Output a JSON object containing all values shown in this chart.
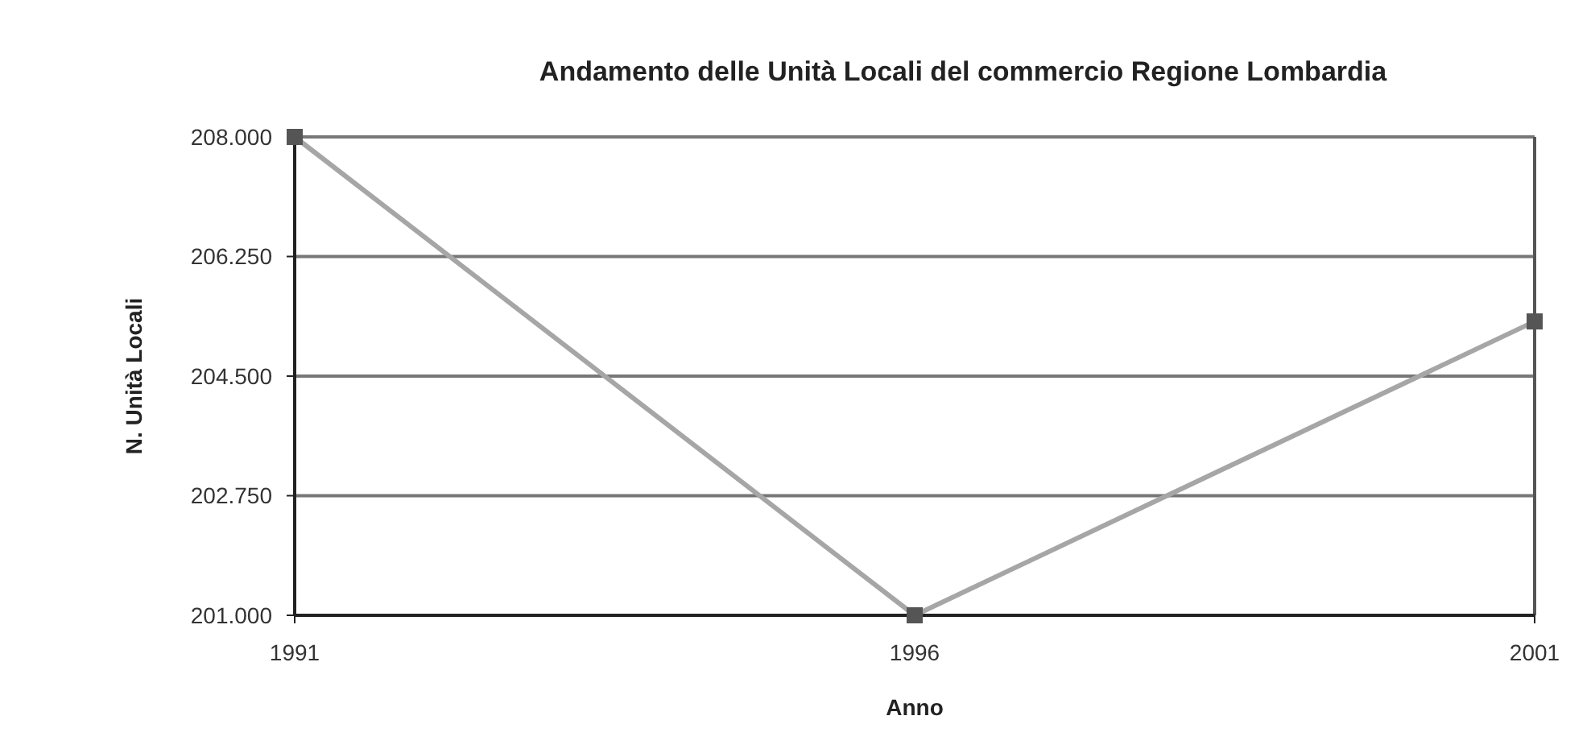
{
  "chart_data": {
    "type": "line",
    "title": "Andamento delle Unità Locali del commercio Regione Lombardia",
    "xlabel": "Anno",
    "ylabel": "N. Unità Locali",
    "x": [
      1991,
      1996,
      2001
    ],
    "series": [
      {
        "color": "#a6a6a6",
        "values": [
          208000,
          201000,
          205300
        ]
      }
    ],
    "marker": "square",
    "grid": "y",
    "xlim": [
      1991,
      2001
    ],
    "xticks": [
      1991,
      1996,
      2001
    ],
    "ylim": [
      201000,
      208000
    ],
    "yticks": [
      {
        "value": 201000,
        "label": "201.000"
      },
      {
        "value": 202750,
        "label": "202.750"
      },
      {
        "value": 204500,
        "label": "204.500"
      },
      {
        "value": 206250,
        "label": "206.250"
      },
      {
        "value": 208000,
        "label": "208.000"
      }
    ]
  }
}
